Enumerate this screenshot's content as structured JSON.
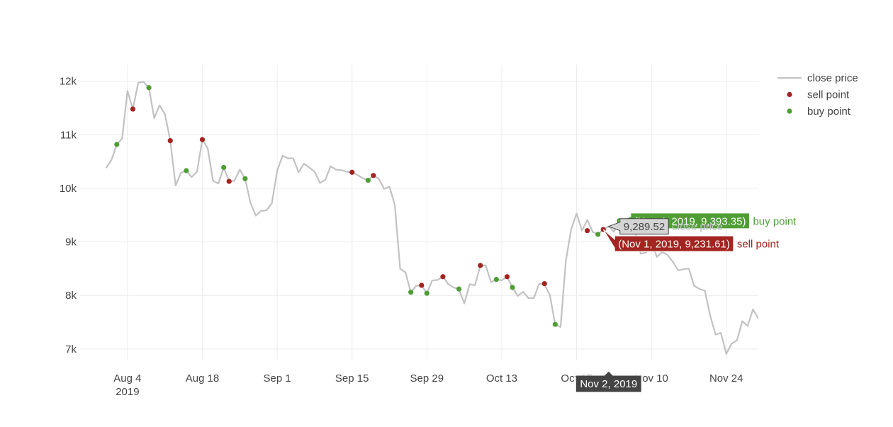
{
  "chart_data": {
    "type": "line",
    "x_start": "2019-07-31",
    "xlim": [
      "2019-07-26",
      "2019-11-30"
    ],
    "ylim": [
      6800,
      12300
    ],
    "grid": true,
    "legend_position": "top-right",
    "x_ticks": [
      {
        "date": "2019-08-04",
        "label": "Aug 4",
        "sublabel": "2019"
      },
      {
        "date": "2019-08-18",
        "label": "Aug 18"
      },
      {
        "date": "2019-09-01",
        "label": "Sep 1"
      },
      {
        "date": "2019-09-15",
        "label": "Sep 15"
      },
      {
        "date": "2019-09-29",
        "label": "Sep 29"
      },
      {
        "date": "2019-10-13",
        "label": "Oct 13"
      },
      {
        "date": "2019-10-27",
        "label": "Oct 27"
      },
      {
        "date": "2019-11-10",
        "label": "Nov 10"
      },
      {
        "date": "2019-11-24",
        "label": "Nov 24"
      }
    ],
    "y_ticks": [
      {
        "value": 7000,
        "label": "7k"
      },
      {
        "value": 8000,
        "label": "8k"
      },
      {
        "value": 9000,
        "label": "9k"
      },
      {
        "value": 10000,
        "label": "10k"
      },
      {
        "value": 11000,
        "label": "11k"
      },
      {
        "value": 12000,
        "label": "12k"
      }
    ],
    "series": [
      {
        "name": "close price",
        "kind": "line",
        "color": "#c2c2c2",
        "points": [
          [
            "2019-07-31",
            10380
          ],
          [
            "2019-08-01",
            10530
          ],
          [
            "2019-08-02",
            10820
          ],
          [
            "2019-08-03",
            10930
          ],
          [
            "2019-08-04",
            11820
          ],
          [
            "2019-08-05",
            11480
          ],
          [
            "2019-08-06",
            11970
          ],
          [
            "2019-08-07",
            11990
          ],
          [
            "2019-08-08",
            11880
          ],
          [
            "2019-08-09",
            11310
          ],
          [
            "2019-08-10",
            11550
          ],
          [
            "2019-08-11",
            11390
          ],
          [
            "2019-08-12",
            10890
          ],
          [
            "2019-08-13",
            10050
          ],
          [
            "2019-08-14",
            10290
          ],
          [
            "2019-08-15",
            10330
          ],
          [
            "2019-08-16",
            10210
          ],
          [
            "2019-08-17",
            10310
          ],
          [
            "2019-08-18",
            10910
          ],
          [
            "2019-08-19",
            10750
          ],
          [
            "2019-08-20",
            10140
          ],
          [
            "2019-08-21",
            10090
          ],
          [
            "2019-08-22",
            10390
          ],
          [
            "2019-08-23",
            10130
          ],
          [
            "2019-08-24",
            10140
          ],
          [
            "2019-08-25",
            10350
          ],
          [
            "2019-08-26",
            10180
          ],
          [
            "2019-08-27",
            9730
          ],
          [
            "2019-08-28",
            9490
          ],
          [
            "2019-08-29",
            9580
          ],
          [
            "2019-08-30",
            9590
          ],
          [
            "2019-08-31",
            9720
          ],
          [
            "2019-09-01",
            10330
          ],
          [
            "2019-09-02",
            10610
          ],
          [
            "2019-09-03",
            10560
          ],
          [
            "2019-09-04",
            10560
          ],
          [
            "2019-09-05",
            10300
          ],
          [
            "2019-09-06",
            10460
          ],
          [
            "2019-09-07",
            10390
          ],
          [
            "2019-09-08",
            10310
          ],
          [
            "2019-09-09",
            10100
          ],
          [
            "2019-09-10",
            10160
          ],
          [
            "2019-09-11",
            10410
          ],
          [
            "2019-09-12",
            10350
          ],
          [
            "2019-09-13",
            10340
          ],
          [
            "2019-09-14",
            10310
          ],
          [
            "2019-09-15",
            10300
          ],
          [
            "2019-09-16",
            10250
          ],
          [
            "2019-09-17",
            10190
          ],
          [
            "2019-09-18",
            10150
          ],
          [
            "2019-09-19",
            10240
          ],
          [
            "2019-09-20",
            10180
          ],
          [
            "2019-09-21",
            9990
          ],
          [
            "2019-09-22",
            10030
          ],
          [
            "2019-09-23",
            9690
          ],
          [
            "2019-09-24",
            8500
          ],
          [
            "2019-09-25",
            8430
          ],
          [
            "2019-09-26",
            8060
          ],
          [
            "2019-09-27",
            8180
          ],
          [
            "2019-09-28",
            8190
          ],
          [
            "2019-09-29",
            8040
          ],
          [
            "2019-09-30",
            8280
          ],
          [
            "2019-10-01",
            8290
          ],
          [
            "2019-10-02",
            8350
          ],
          [
            "2019-10-03",
            8210
          ],
          [
            "2019-10-04",
            8150
          ],
          [
            "2019-10-05",
            8120
          ],
          [
            "2019-10-06",
            7850
          ],
          [
            "2019-10-07",
            8210
          ],
          [
            "2019-10-08",
            8190
          ],
          [
            "2019-10-09",
            8560
          ],
          [
            "2019-10-10",
            8560
          ],
          [
            "2019-10-11",
            8250
          ],
          [
            "2019-10-12",
            8300
          ],
          [
            "2019-10-13",
            8280
          ],
          [
            "2019-10-14",
            8350
          ],
          [
            "2019-10-15",
            8150
          ],
          [
            "2019-10-16",
            7990
          ],
          [
            "2019-10-17",
            8070
          ],
          [
            "2019-10-18",
            7950
          ],
          [
            "2019-10-19",
            7950
          ],
          [
            "2019-10-20",
            8220
          ],
          [
            "2019-10-21",
            8200
          ],
          [
            "2019-10-22",
            8010
          ],
          [
            "2019-10-23",
            7460
          ],
          [
            "2019-10-24",
            7410
          ],
          [
            "2019-10-25",
            8650
          ],
          [
            "2019-10-26",
            9240
          ],
          [
            "2019-10-27",
            9530
          ],
          [
            "2019-10-28",
            9210
          ],
          [
            "2019-10-29",
            9410
          ],
          [
            "2019-10-30",
            9190
          ],
          [
            "2019-10-31",
            9140
          ],
          [
            "2019-11-01",
            9231.61
          ],
          [
            "2019-11-02",
            9289.52
          ],
          [
            "2019-11-03",
            9190
          ],
          [
            "2019-11-04",
            9393.35
          ],
          [
            "2019-11-05",
            9320
          ],
          [
            "2019-11-06",
            9340
          ],
          [
            "2019-11-07",
            9180
          ],
          [
            "2019-11-08",
            8780
          ],
          [
            "2019-11-09",
            8800
          ],
          [
            "2019-11-10",
            9030
          ],
          [
            "2019-11-11",
            8720
          ],
          [
            "2019-11-12",
            8810
          ],
          [
            "2019-11-13",
            8760
          ],
          [
            "2019-11-14",
            8630
          ],
          [
            "2019-11-15",
            8470
          ],
          [
            "2019-11-16",
            8490
          ],
          [
            "2019-11-17",
            8500
          ],
          [
            "2019-11-18",
            8180
          ],
          [
            "2019-11-19",
            8120
          ],
          [
            "2019-11-20",
            8090
          ],
          [
            "2019-11-21",
            7620
          ],
          [
            "2019-11-22",
            7270
          ],
          [
            "2019-11-23",
            7300
          ],
          [
            "2019-11-24",
            6910
          ],
          [
            "2019-11-25",
            7100
          ],
          [
            "2019-11-26",
            7160
          ],
          [
            "2019-11-27",
            7520
          ],
          [
            "2019-11-28",
            7430
          ],
          [
            "2019-11-29",
            7740
          ],
          [
            "2019-11-30",
            7570
          ],
          [
            "2019-12-01",
            7400
          ]
        ]
      },
      {
        "name": "sell point",
        "kind": "markers",
        "color": "#a32420",
        "points": [
          [
            "2019-08-05",
            11480
          ],
          [
            "2019-08-12",
            10890
          ],
          [
            "2019-08-18",
            10910
          ],
          [
            "2019-08-23",
            10130
          ],
          [
            "2019-09-15",
            10300
          ],
          [
            "2019-09-19",
            10240
          ],
          [
            "2019-09-28",
            8190
          ],
          [
            "2019-10-02",
            8350
          ],
          [
            "2019-10-09",
            8560
          ],
          [
            "2019-10-14",
            8350
          ],
          [
            "2019-10-21",
            8220
          ],
          [
            "2019-10-29",
            9210
          ],
          [
            "2019-11-01",
            9231.61
          ]
        ]
      },
      {
        "name": "buy point",
        "kind": "markers",
        "color": "#4f9e35",
        "points": [
          [
            "2019-08-02",
            10820
          ],
          [
            "2019-08-08",
            11880
          ],
          [
            "2019-08-15",
            10330
          ],
          [
            "2019-08-22",
            10390
          ],
          [
            "2019-08-26",
            10180
          ],
          [
            "2019-09-18",
            10150
          ],
          [
            "2019-09-26",
            8060
          ],
          [
            "2019-09-29",
            8040
          ],
          [
            "2019-10-05",
            8120
          ],
          [
            "2019-10-12",
            8300
          ],
          [
            "2019-10-15",
            8150
          ],
          [
            "2019-10-23",
            7460
          ],
          [
            "2019-10-31",
            9140
          ],
          [
            "2019-11-04",
            9393.35
          ]
        ]
      }
    ],
    "hover": {
      "x_label": "Nov 2, 2019",
      "labels": [
        {
          "series": "buy point",
          "text": "(Nov 4, 2019, 9,393.35)",
          "name": "buy point",
          "color": "#4f9e35",
          "value": 9393.35,
          "date": "2019-11-04"
        },
        {
          "series": "close price",
          "text": "9,289.52",
          "name": "close price",
          "color": "#c2c2c2",
          "value": 9289.52,
          "date": "2019-11-02"
        },
        {
          "series": "sell point",
          "text": "(Nov 1, 2019, 9,231.61)",
          "name": "sell point",
          "color": "#a32420",
          "value": 9231.61,
          "date": "2019-11-01"
        }
      ]
    }
  }
}
